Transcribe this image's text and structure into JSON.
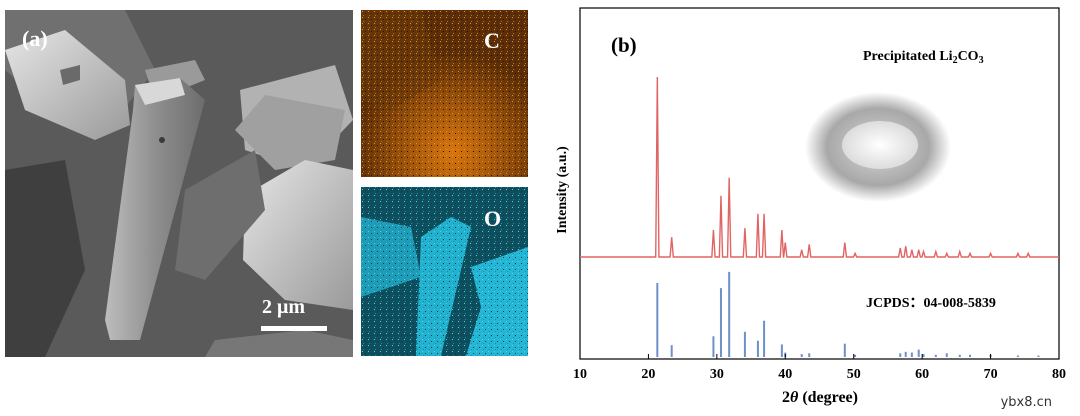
{
  "panel_a": {
    "label": "(a)",
    "scale_bar": "2 μm",
    "map_c_label": "C",
    "map_o_label": "O",
    "colors": {
      "carbon": "#d9760f",
      "oxygen": "#22b9d8"
    }
  },
  "chart_data": {
    "type": "line",
    "panel_label": "(b)",
    "title_prefix": "Precipitated Li",
    "title_sub1": "2",
    "title_mid": "CO",
    "title_sub2": "3",
    "xlabel_prefix": "2",
    "xlabel_theta": "θ",
    "xlabel_suffix": " (degree)",
    "ylabel": "Intensity (a.u.)",
    "xlim": [
      10,
      80
    ],
    "xticks": [
      "10",
      "20",
      "30",
      "40",
      "50",
      "60",
      "70",
      "80"
    ],
    "reference_label": "JCPDS：04-008-5839",
    "series": [
      {
        "name": "Precipitated Li2CO3",
        "color": "#e06464",
        "peaks": [
          {
            "x": 21.3,
            "y": 100
          },
          {
            "x": 23.4,
            "y": 11
          },
          {
            "x": 29.5,
            "y": 15
          },
          {
            "x": 30.6,
            "y": 34
          },
          {
            "x": 31.8,
            "y": 44
          },
          {
            "x": 34.1,
            "y": 16
          },
          {
            "x": 36.0,
            "y": 24
          },
          {
            "x": 36.9,
            "y": 24
          },
          {
            "x": 39.5,
            "y": 15
          },
          {
            "x": 40.0,
            "y": 8
          },
          {
            "x": 42.4,
            "y": 4
          },
          {
            "x": 43.5,
            "y": 7
          },
          {
            "x": 48.7,
            "y": 8
          },
          {
            "x": 50.2,
            "y": 2
          },
          {
            "x": 56.8,
            "y": 5
          },
          {
            "x": 57.6,
            "y": 6
          },
          {
            "x": 58.5,
            "y": 4
          },
          {
            "x": 59.5,
            "y": 4
          },
          {
            "x": 60.2,
            "y": 3
          },
          {
            "x": 62.0,
            "y": 3
          },
          {
            "x": 63.6,
            "y": 2
          },
          {
            "x": 65.5,
            "y": 3
          },
          {
            "x": 67.0,
            "y": 2
          },
          {
            "x": 70.0,
            "y": 2
          },
          {
            "x": 74.0,
            "y": 2
          },
          {
            "x": 75.5,
            "y": 2
          }
        ]
      },
      {
        "name": "JCPDS 04-008-5839",
        "color": "#6e8fc8",
        "peaks": [
          {
            "x": 21.3,
            "y": 100
          },
          {
            "x": 23.4,
            "y": 16
          },
          {
            "x": 29.5,
            "y": 28
          },
          {
            "x": 30.6,
            "y": 93
          },
          {
            "x": 31.8,
            "y": 115
          },
          {
            "x": 34.1,
            "y": 34
          },
          {
            "x": 36.0,
            "y": 22
          },
          {
            "x": 36.9,
            "y": 49
          },
          {
            "x": 39.5,
            "y": 17
          },
          {
            "x": 40.0,
            "y": 6
          },
          {
            "x": 42.4,
            "y": 4
          },
          {
            "x": 43.5,
            "y": 5
          },
          {
            "x": 48.7,
            "y": 18
          },
          {
            "x": 50.2,
            "y": 3
          },
          {
            "x": 56.8,
            "y": 5
          },
          {
            "x": 57.6,
            "y": 7
          },
          {
            "x": 58.5,
            "y": 6
          },
          {
            "x": 59.5,
            "y": 10
          },
          {
            "x": 60.2,
            "y": 4
          },
          {
            "x": 62.0,
            "y": 3
          },
          {
            "x": 63.6,
            "y": 5
          },
          {
            "x": 65.5,
            "y": 3
          },
          {
            "x": 67.0,
            "y": 3
          },
          {
            "x": 70.0,
            "y": 3
          },
          {
            "x": 74.0,
            "y": 2
          },
          {
            "x": 77.0,
            "y": 2
          }
        ]
      }
    ]
  },
  "watermark": "ybx8.cn"
}
